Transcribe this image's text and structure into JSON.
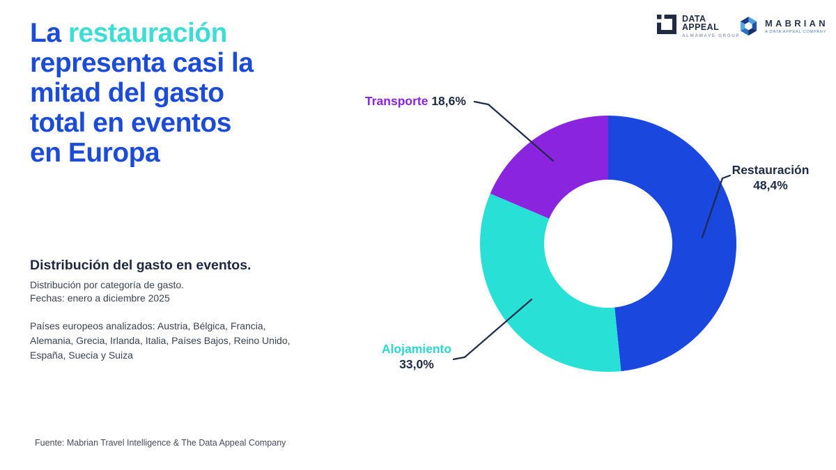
{
  "title": {
    "word1": "La",
    "highlight": "restauración",
    "rest": "representa casi la\nmitad del gasto\ntotal en eventos\nen Europa"
  },
  "info": {
    "heading": "Distribución del gasto en eventos.",
    "subtitle": "Distribución por categoría de gasto.\nFechas: enero a diciembre 2025",
    "countries": "Países europeos analizados: Austria, Bélgica, Francia,\nAlemania, Grecia, Irlanda, Italia, Países Bajos, Reino Unido,\nEspaña, Suecia y Suiza"
  },
  "footer": {
    "source": "Fuente: Mabrian Travel Intelligence & The Data Appeal Company"
  },
  "logos": {
    "data_appeal": {
      "name_line1": "DATA",
      "name_line2": "APPEAL",
      "subtitle": "ALMAWAVE GROUP"
    },
    "mabrian": {
      "name": "MABRIAN",
      "subtitle": "A DATA APPEAL COMPANY"
    }
  },
  "palette": {
    "title_blue": "#1C4BD6",
    "title_cyan": "#3EDCD4",
    "navy_text": "#1F2A44",
    "body_text": "#3A4150",
    "leader_line": "#1E2A4A"
  },
  "chart_data": {
    "type": "pie",
    "donut": true,
    "inner_radius_ratio": 0.5,
    "title": "Distribución del gasto en eventos.",
    "subtitle": "Distribución por categoría de gasto.",
    "period": "Fechas: enero a diciembre 2025",
    "start_angle_deg": 0,
    "direction": "clockwise",
    "legend_position": "outside-labels",
    "slices": [
      {
        "key": "restauracion",
        "label": "Restauración",
        "value_pct": 48.4,
        "display": "48,4%",
        "color": "#1A48DF"
      },
      {
        "key": "alojamiento",
        "label": "Alojamiento",
        "value_pct": 33.0,
        "display": "33,0%",
        "color": "#28E0D6"
      },
      {
        "key": "transporte",
        "label": "Transporte",
        "value_pct": 18.6,
        "display": "18,6%",
        "color": "#8B24DE"
      }
    ]
  }
}
